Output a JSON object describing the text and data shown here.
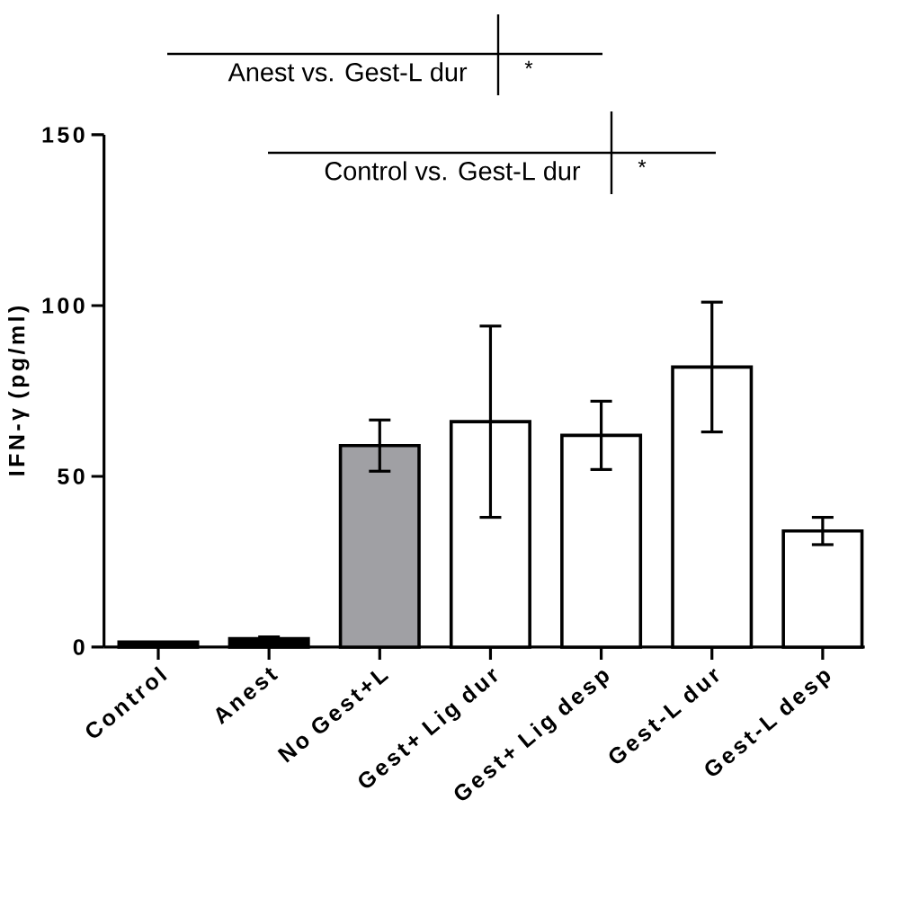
{
  "chart_data": {
    "type": "bar",
    "ylabel": "IFN-γ (pg/ml)",
    "categories": [
      "Control",
      "Anest",
      "No Gest+L",
      "Gest+ Lig dur",
      "Gest+ Lig desp",
      "Gest-L dur",
      "Gest-L desp"
    ],
    "values": [
      1.5,
      2.5,
      59,
      66,
      62,
      82,
      34
    ],
    "errors": [
      null,
      0.5,
      7.5,
      28,
      10,
      19,
      4
    ],
    "colors": [
      "#000000",
      "#000000",
      "#a0a0a4",
      "#ffffff",
      "#ffffff",
      "#ffffff",
      "#ffffff"
    ],
    "ylim": [
      0,
      150
    ],
    "yticks": [
      0,
      50,
      100,
      150
    ],
    "annotations": [
      "Anest vs. Gest-L dur",
      "*",
      "Control vs. Gest-L dur",
      "*"
    ]
  }
}
